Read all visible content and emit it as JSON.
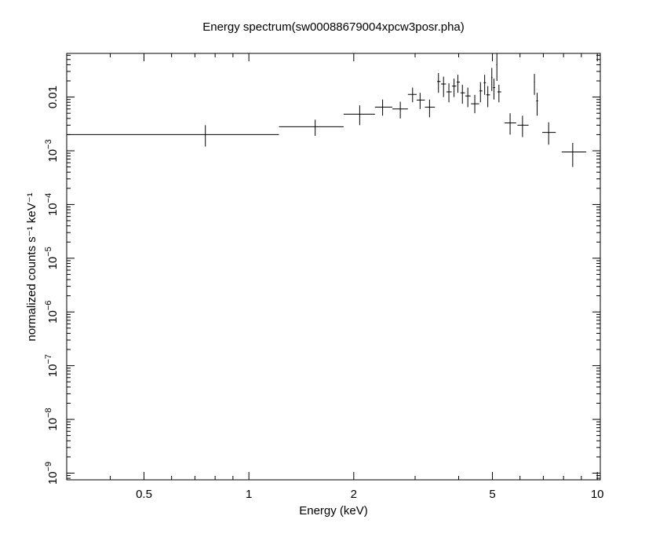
{
  "chart_data": {
    "type": "scatter",
    "title": "Energy spectrum(sw00088679004xpcw3posr.pha)",
    "xlabel": "Energy (keV)",
    "ylabel": "normalized counts s⁻¹ keV⁻¹",
    "x_scale": "log",
    "y_scale": "log",
    "xlim": [
      0.3,
      10.2
    ],
    "ylim": [
      7.5e-10,
      0.065
    ],
    "grid": false,
    "x_ticks": [
      {
        "value": 0.5,
        "label": "0.5"
      },
      {
        "value": 1,
        "label": "1"
      },
      {
        "value": 2,
        "label": "2"
      },
      {
        "value": 5,
        "label": "5"
      },
      {
        "value": 10,
        "label": "10"
      }
    ],
    "y_ticks": [
      {
        "value": 1e-09,
        "base": "10",
        "exp": "−9"
      },
      {
        "value": 1e-08,
        "base": "10",
        "exp": "−8"
      },
      {
        "value": 1e-07,
        "base": "10",
        "exp": "−7"
      },
      {
        "value": 1e-06,
        "base": "10",
        "exp": "−6"
      },
      {
        "value": 1e-05,
        "base": "10",
        "exp": "−5"
      },
      {
        "value": 0.0001,
        "base": "10",
        "exp": "−4"
      },
      {
        "value": 0.001,
        "base": "10",
        "exp": "−3"
      },
      {
        "value": 0.01,
        "label": "0.01"
      }
    ],
    "series": [
      {
        "points": [
          {
            "x": 0.75,
            "y": 0.002,
            "xlo": 0.3,
            "xhi": 1.22,
            "ylo": 0.0012,
            "yhi": 0.003
          },
          {
            "x": 1.55,
            "y": 0.0028,
            "xlo": 1.22,
            "xhi": 1.87,
            "ylo": 0.0019,
            "yhi": 0.0038
          },
          {
            "x": 2.08,
            "y": 0.0048,
            "xlo": 1.87,
            "xhi": 2.3,
            "ylo": 0.003,
            "yhi": 0.007
          },
          {
            "x": 2.42,
            "y": 0.0065,
            "xlo": 2.3,
            "xhi": 2.58,
            "ylo": 0.0045,
            "yhi": 0.009
          },
          {
            "x": 2.72,
            "y": 0.006,
            "xlo": 2.58,
            "xhi": 2.86,
            "ylo": 0.004,
            "yhi": 0.0082
          },
          {
            "x": 2.95,
            "y": 0.0112,
            "xlo": 2.86,
            "xhi": 3.03,
            "ylo": 0.008,
            "yhi": 0.015
          },
          {
            "x": 3.1,
            "y": 0.0088,
            "xlo": 3.03,
            "xhi": 3.2,
            "ylo": 0.006,
            "yhi": 0.012
          },
          {
            "x": 3.3,
            "y": 0.0065,
            "xlo": 3.2,
            "xhi": 3.42,
            "ylo": 0.0042,
            "yhi": 0.009
          },
          {
            "x": 3.5,
            "y": 0.0195,
            "xlo": 3.47,
            "xhi": 3.55,
            "ylo": 0.012,
            "yhi": 0.028
          },
          {
            "x": 3.62,
            "y": 0.0175,
            "xlo": 3.56,
            "xhi": 3.68,
            "ylo": 0.01,
            "yhi": 0.024
          },
          {
            "x": 3.75,
            "y": 0.0125,
            "xlo": 3.69,
            "xhi": 3.82,
            "ylo": 0.008,
            "yhi": 0.018
          },
          {
            "x": 3.88,
            "y": 0.016,
            "xlo": 3.83,
            "xhi": 3.94,
            "ylo": 0.01,
            "yhi": 0.022
          },
          {
            "x": 3.98,
            "y": 0.019,
            "xlo": 3.95,
            "xhi": 4.03,
            "ylo": 0.012,
            "yhi": 0.026
          },
          {
            "x": 4.1,
            "y": 0.012,
            "xlo": 4.05,
            "xhi": 4.17,
            "ylo": 0.0075,
            "yhi": 0.017
          },
          {
            "x": 4.25,
            "y": 0.0105,
            "xlo": 4.18,
            "xhi": 4.33,
            "ylo": 0.0065,
            "yhi": 0.015
          },
          {
            "x": 4.45,
            "y": 0.0075,
            "xlo": 4.34,
            "xhi": 4.58,
            "ylo": 0.005,
            "yhi": 0.011
          },
          {
            "x": 4.62,
            "y": 0.013,
            "xlo": 4.59,
            "xhi": 4.68,
            "ylo": 0.008,
            "yhi": 0.019
          },
          {
            "x": 4.75,
            "y": 0.0185,
            "xlo": 4.72,
            "xhi": 4.79,
            "ylo": 0.011,
            "yhi": 0.026
          },
          {
            "x": 4.85,
            "y": 0.011,
            "xlo": 4.8,
            "xhi": 4.92,
            "ylo": 0.0065,
            "yhi": 0.016
          },
          {
            "x": 4.98,
            "y": 0.023,
            "xlo": 4.96,
            "xhi": 5.0,
            "ylo": 0.013,
            "yhi": 0.035
          },
          {
            "x": 5.05,
            "y": 0.015,
            "xlo": 5.02,
            "xhi": 5.09,
            "ylo": 0.009,
            "yhi": 0.022
          },
          {
            "x": 5.15,
            "y": 0.04,
            "xlo": 5.13,
            "xhi": 5.16,
            "ylo": 0.02,
            "yhi": 0.065
          },
          {
            "x": 5.22,
            "y": 0.0125,
            "xlo": 5.17,
            "xhi": 5.3,
            "ylo": 0.008,
            "yhi": 0.017
          },
          {
            "x": 5.62,
            "y": 0.0033,
            "xlo": 5.42,
            "xhi": 5.85,
            "ylo": 0.002,
            "yhi": 0.005
          },
          {
            "x": 6.1,
            "y": 0.003,
            "xlo": 5.9,
            "xhi": 6.35,
            "ylo": 0.0018,
            "yhi": 0.0045
          },
          {
            "x": 6.6,
            "y": 0.019,
            "xlo": 6.58,
            "xhi": 6.62,
            "ylo": 0.011,
            "yhi": 0.027
          },
          {
            "x": 6.72,
            "y": 0.0085,
            "xlo": 6.68,
            "xhi": 6.76,
            "ylo": 0.0045,
            "yhi": 0.012
          },
          {
            "x": 7.25,
            "y": 0.0022,
            "xlo": 6.95,
            "xhi": 7.6,
            "ylo": 0.0013,
            "yhi": 0.0034
          },
          {
            "x": 8.5,
            "y": 0.00095,
            "xlo": 7.9,
            "xhi": 9.3,
            "ylo": 0.0005,
            "yhi": 0.0014
          }
        ]
      }
    ]
  }
}
